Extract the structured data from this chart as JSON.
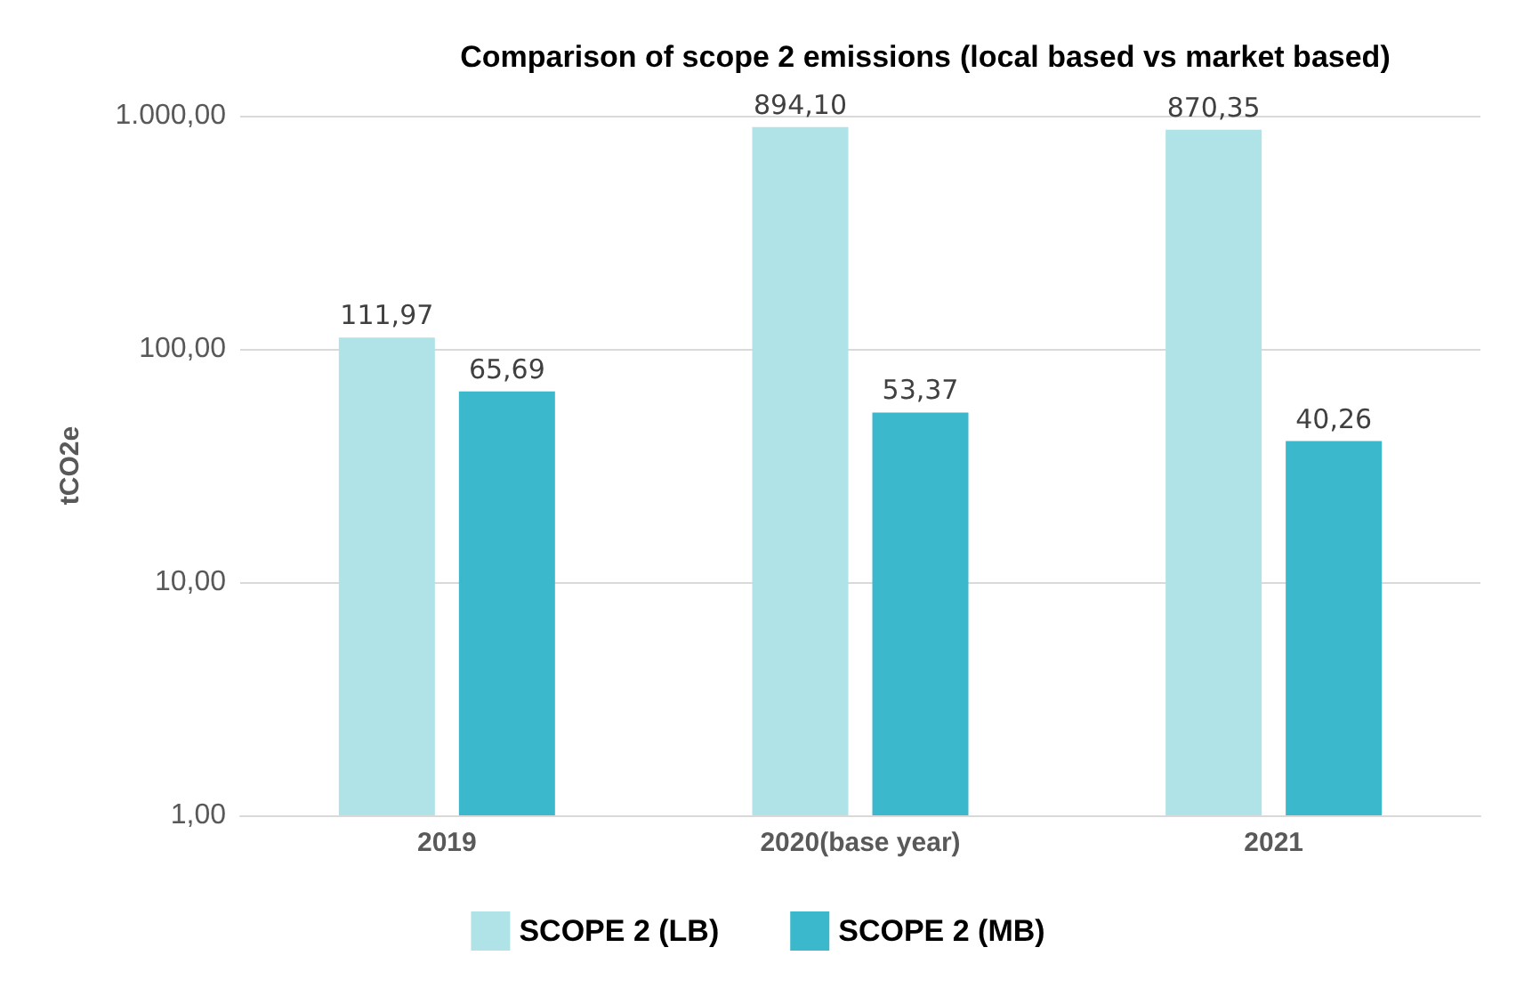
{
  "chart_data": {
    "type": "bar",
    "title": "Comparison of scope 2 emissions",
    "subtitle": "(local based vs market based)",
    "ylabel": "tCO2e",
    "categories": [
      "2019",
      "2020(base year)",
      "2021"
    ],
    "series": [
      {
        "name": "SCOPE 2 (LB)",
        "color": "#b0e3e8",
        "values": [
          111.97,
          894.1,
          870.35
        ],
        "value_labels": [
          "111,97",
          "894,10",
          "870,35"
        ]
      },
      {
        "name": "SCOPE 2 (MB)",
        "color": "#3cb8cc",
        "values": [
          65.69,
          53.37,
          40.26
        ],
        "value_labels": [
          "65,69",
          "53,37",
          "40,26"
        ]
      }
    ],
    "log": true,
    "ylim": [
      1,
      1000
    ],
    "yticks": [
      {
        "value": 1,
        "label": "1,00"
      },
      {
        "value": 10,
        "label": "10,00"
      },
      {
        "value": 100,
        "label": "100,00"
      },
      {
        "value": 1000,
        "label": "1.000,00"
      }
    ],
    "grid": "y",
    "legend": "bottom"
  }
}
